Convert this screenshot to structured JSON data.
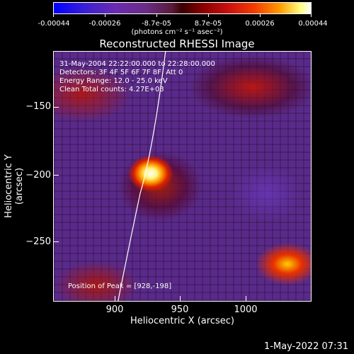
{
  "colorbar": {
    "ticks": [
      "-0.00044",
      "-0.00026",
      "-8.7e-05",
      "8.7e-05",
      "0.00026",
      "0.00044"
    ],
    "units": "(photons cm⁻² s⁻¹ asec⁻²)"
  },
  "title": "Reconstructed RHESSI Image",
  "info": {
    "time_range": "31-May-2004 22:22:00.000 to 22:28:00.000",
    "detectors": "Detectors: 3F 4F 5F 6F 7F 8F, Att 0",
    "energy": "Energy Range: 12.0 - 25.0 keV",
    "clean": "Clean     Total counts: 4.27E+03",
    "peak": "Position of Peak = [928,-198]"
  },
  "axes": {
    "xlabel": "Heliocentric X (arcsec)",
    "ylabel": "Heliocentric Y (arcsec)",
    "xticks": [
      "900",
      "950",
      "1000"
    ],
    "yticks": [
      "−150",
      "−200",
      "−250"
    ]
  },
  "timestamp": "1-May-2022 07:31"
}
